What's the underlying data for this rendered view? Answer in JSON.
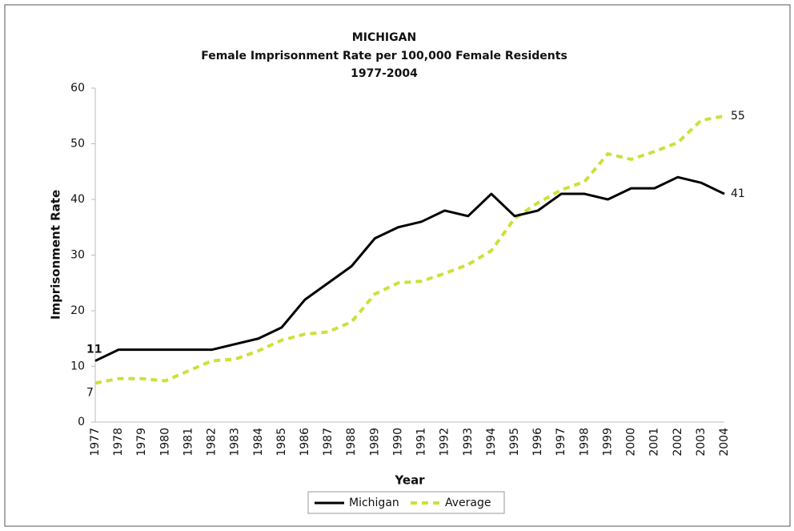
{
  "chart_data": {
    "type": "line",
    "title": [
      "MICHIGAN",
      "Female Imprisonment Rate per 100,000 Female Residents",
      "1977-2004"
    ],
    "xlabel": "Year",
    "ylabel": "Imprisonment Rate",
    "categories": [
      "1977",
      "1978",
      "1979",
      "1980",
      "1981",
      "1982",
      "1983",
      "1984",
      "1985",
      "1986",
      "1987",
      "1988",
      "1989",
      "1990",
      "1991",
      "1992",
      "1993",
      "1994",
      "1995",
      "1996",
      "1997",
      "1998",
      "1999",
      "2000",
      "2001",
      "2002",
      "2003",
      "2004"
    ],
    "ylim": [
      0,
      60
    ],
    "yticks": [
      0,
      10,
      20,
      30,
      40,
      50,
      60
    ],
    "grid": false,
    "legend": "bottom",
    "series": [
      {
        "name": "Michigan",
        "color": "#000000",
        "dash": false,
        "values": [
          11,
          13,
          13,
          13,
          13,
          13,
          14,
          15,
          17,
          22,
          25,
          28,
          33,
          35,
          36,
          38,
          37,
          41,
          37,
          38,
          41,
          41,
          40,
          42,
          42,
          44,
          43,
          41
        ]
      },
      {
        "name": "Average",
        "color": "#cde03a",
        "dash": true,
        "values": [
          7,
          7.8,
          7.8,
          7.4,
          9.2,
          11,
          11.3,
          12.8,
          14.7,
          15.8,
          16.2,
          18,
          23,
          25,
          25.3,
          26.7,
          28.3,
          30.8,
          36.6,
          39.4,
          41.7,
          43.2,
          48.2,
          47.2,
          48.6,
          50.2,
          54.2,
          55
        ]
      }
    ]
  }
}
